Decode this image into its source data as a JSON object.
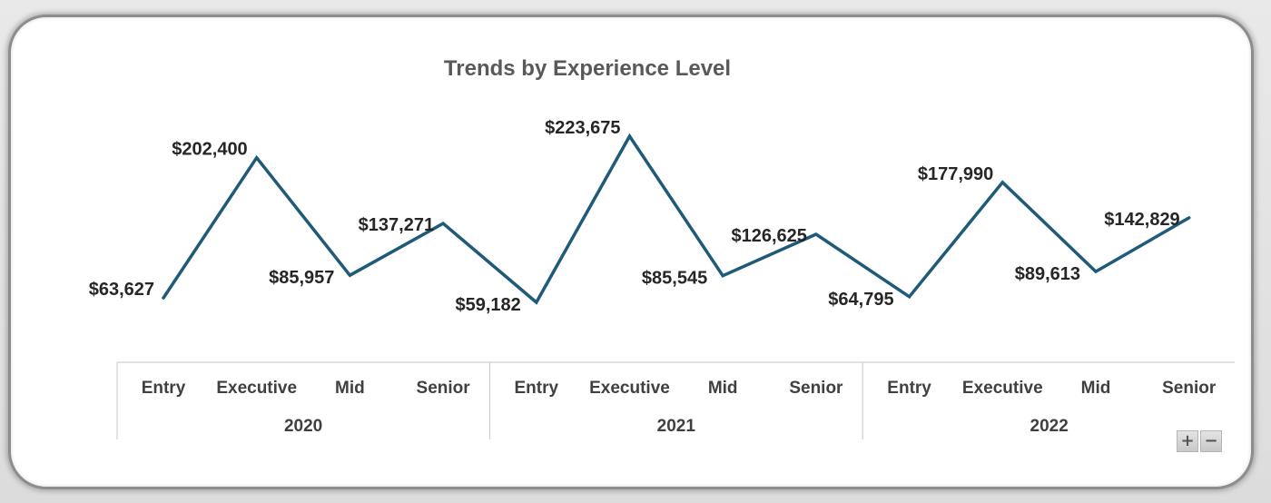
{
  "chart_data": {
    "type": "line",
    "title": "Trends by Experience Level",
    "groups": [
      {
        "name": "2020",
        "categories": [
          "Entry",
          "Executive",
          "Mid",
          "Senior"
        ]
      },
      {
        "name": "2021",
        "categories": [
          "Entry",
          "Executive",
          "Mid",
          "Senior"
        ]
      },
      {
        "name": "2022",
        "categories": [
          "Entry",
          "Executive",
          "Mid",
          "Senior"
        ]
      }
    ],
    "values": [
      63627,
      202400,
      85957,
      137271,
      59182,
      223675,
      85545,
      126625,
      64795,
      177990,
      89613,
      142829
    ],
    "value_labels": [
      "$63,627",
      "$202,400",
      "$85,957",
      "$137,271",
      "$59,182",
      "$223,675",
      "$85,545",
      "$126,625",
      "$64,795",
      "$177,990",
      "$89,613",
      "$142,829"
    ],
    "line_color": "#1f5a78",
    "grid": false,
    "legend": "none"
  },
  "controls": {
    "expand_label": "+",
    "collapse_label": "−"
  }
}
